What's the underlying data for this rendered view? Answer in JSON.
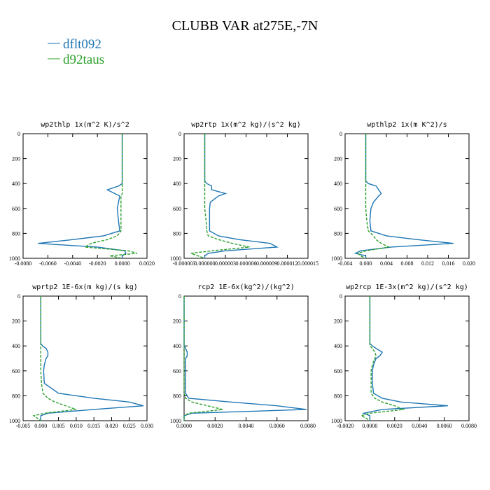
{
  "title": "CLUBB VAR at275E,-7N",
  "chart_data": [
    {
      "type": "line",
      "title": "wp2thlp   1x(m^2 K)/s^2",
      "y_inverted": true,
      "y": [
        0,
        200,
        380,
        400,
        420,
        450,
        480,
        500,
        550,
        600,
        700,
        780,
        820,
        850,
        880,
        910,
        940,
        960,
        980,
        1000
      ],
      "series": [
        {
          "name": "dflt092",
          "color": "#1f77b4",
          "linestyle": "solid",
          "values": [
            0,
            0,
            0,
            0,
            -0.0003,
            -0.0012,
            -0.0006,
            -0.0002,
            -0.0003,
            -0.0004,
            -0.0003,
            -0.0002,
            -0.0015,
            -0.004,
            -0.0068,
            -0.002,
            0.0002,
            0.0003,
            0,
            0
          ]
        },
        {
          "name": "d92taus",
          "color": "#2ca02c",
          "linestyle": "dashed",
          "values": [
            0,
            0,
            0,
            0,
            0,
            0,
            0,
            -0.0001,
            -0.0001,
            -0.0001,
            -0.0001,
            -0.0001,
            -0.0004,
            -0.0012,
            -0.0025,
            -0.003,
            0.0005,
            0.0012,
            -0.001,
            0
          ]
        }
      ],
      "xlim": [
        -0.008,
        0.002
      ],
      "xticks": [
        {
          "value": -0.008,
          "label": "-0.0080"
        },
        {
          "value": -0.006,
          "label": "-0.0060"
        },
        {
          "value": -0.004,
          "label": "-0.0040"
        },
        {
          "value": -0.002,
          "label": "-0.0020"
        },
        {
          "value": 0,
          "label": "0.0000"
        },
        {
          "value": 0.002,
          "label": "0.0020"
        }
      ],
      "ylim": [
        0,
        1000
      ],
      "yticks": [
        0,
        200,
        400,
        600,
        800,
        1000
      ]
    },
    {
      "type": "line",
      "title": "wp2rtp   1x(m^2 kg)/(s^2 kg)",
      "y_inverted": true,
      "y": [
        0,
        200,
        380,
        400,
        420,
        450,
        480,
        500,
        550,
        600,
        700,
        780,
        820,
        850,
        880,
        910,
        940,
        960,
        980,
        1000
      ],
      "series": [
        {
          "name": "dflt092",
          "color": "#1f77b4",
          "linestyle": "solid",
          "values": [
            0,
            0,
            0,
            3e-07,
            1e-06,
            1e-06,
            3e-06,
            2e-06,
            8e-07,
            7e-07,
            7e-07,
            7e-07,
            2e-06,
            5e-06,
            9.5e-06,
            1.05e-05,
            3e-06,
            5e-07,
            0,
            0
          ]
        },
        {
          "name": "d92taus",
          "color": "#2ca02c",
          "linestyle": "dashed",
          "values": [
            0,
            0,
            0,
            0,
            0,
            0,
            0,
            0,
            0,
            0,
            2e-07,
            3e-07,
            5e-07,
            2e-06,
            4e-06,
            6.5e-06,
            1e-06,
            -2e-06,
            -1e-06,
            0
          ]
        }
      ],
      "xlim": [
        -3e-06,
        1.5e-05
      ],
      "xticks": [
        {
          "value": -3e-06,
          "label": "-0.000003"
        },
        {
          "value": 0,
          "label": "0.000000"
        },
        {
          "value": 3e-06,
          "label": "0.000003"
        },
        {
          "value": 6e-06,
          "label": "0.000006"
        },
        {
          "value": 9e-06,
          "label": "0.000009"
        },
        {
          "value": 1.2e-05,
          "label": "0.000012"
        },
        {
          "value": 1.5e-05,
          "label": "0.000015"
        }
      ],
      "ylim": [
        0,
        1000
      ],
      "yticks": [
        0,
        200,
        400,
        600,
        800,
        1000
      ]
    },
    {
      "type": "line",
      "title": "wpthlp2   1x(m K^2)/s",
      "y_inverted": true,
      "y": [
        0,
        200,
        380,
        400,
        420,
        450,
        480,
        500,
        550,
        600,
        700,
        780,
        820,
        850,
        880,
        910,
        940,
        960,
        980,
        1000
      ],
      "series": [
        {
          "name": "dflt092",
          "color": "#1f77b4",
          "linestyle": "solid",
          "values": [
            0,
            0,
            0,
            0.0005,
            0.002,
            0.0025,
            0.003,
            0.0025,
            0.0015,
            0.001,
            0.0008,
            0.001,
            0.004,
            0.01,
            0.017,
            0.005,
            -0.001,
            -0.002,
            0,
            0
          ]
        },
        {
          "name": "d92taus",
          "color": "#2ca02c",
          "linestyle": "dashed",
          "values": [
            0,
            0,
            0,
            0,
            0,
            0,
            0,
            0,
            0,
            0,
            0.0002,
            0.0005,
            0.0015,
            0.002,
            0.003,
            0.0045,
            0,
            -0.0015,
            -0.001,
            0
          ]
        }
      ],
      "xlim": [
        -0.004,
        0.02
      ],
      "xticks": [
        {
          "value": -0.004,
          "label": "-0.004"
        },
        {
          "value": 0,
          "label": "0.000"
        },
        {
          "value": 0.004,
          "label": "0.004"
        },
        {
          "value": 0.008,
          "label": "0.008"
        },
        {
          "value": 0.012,
          "label": "0.012"
        },
        {
          "value": 0.016,
          "label": "0.016"
        },
        {
          "value": 0.02,
          "label": "0.020"
        }
      ],
      "ylim": [
        0,
        1000
      ],
      "yticks": [
        0,
        200,
        400,
        600,
        800,
        1000
      ]
    },
    {
      "type": "line",
      "title": "wprtp2   1E-6x(m kg)/(s kg)",
      "y_inverted": true,
      "y": [
        0,
        200,
        380,
        400,
        420,
        450,
        480,
        500,
        550,
        600,
        700,
        780,
        820,
        850,
        880,
        910,
        940,
        960,
        980,
        1000
      ],
      "series": [
        {
          "name": "dflt092",
          "color": "#1f77b4",
          "linestyle": "solid",
          "values": [
            0,
            0,
            0,
            0.0005,
            0.0015,
            0.002,
            0.002,
            0.0015,
            0.001,
            0.0008,
            0.001,
            0.005,
            0.015,
            0.025,
            0.029,
            0.015,
            0.002,
            0,
            0,
            0
          ]
        },
        {
          "name": "d92taus",
          "color": "#2ca02c",
          "linestyle": "dashed",
          "values": [
            0,
            0,
            0,
            0,
            0,
            0,
            0,
            0,
            0,
            0,
            0.0002,
            0.0006,
            0.002,
            0.004,
            0.007,
            0.01,
            0.001,
            -0.002,
            -0.001,
            0
          ]
        }
      ],
      "xlim": [
        -0.005,
        0.03
      ],
      "xticks": [
        {
          "value": -0.005,
          "label": "-0.005"
        },
        {
          "value": 0,
          "label": "0.000"
        },
        {
          "value": 0.005,
          "label": "0.005"
        },
        {
          "value": 0.01,
          "label": "0.010"
        },
        {
          "value": 0.015,
          "label": "0.015"
        },
        {
          "value": 0.02,
          "label": "0.020"
        },
        {
          "value": 0.025,
          "label": "0.025"
        },
        {
          "value": 0.03,
          "label": "0.030"
        }
      ],
      "ylim": [
        0,
        1000
      ],
      "yticks": [
        0,
        200,
        400,
        600,
        800,
        1000
      ]
    },
    {
      "type": "line",
      "title": "rcp2   1E-6x(kg^2)/(kg^2)",
      "y_inverted": true,
      "y": [
        0,
        200,
        380,
        400,
        420,
        450,
        480,
        500,
        550,
        600,
        700,
        780,
        820,
        850,
        880,
        910,
        940,
        960,
        980,
        1000
      ],
      "series": [
        {
          "name": "dflt092",
          "color": "#1f77b4",
          "linestyle": "solid",
          "values": [
            0,
            0,
            0,
            0,
            0.0001,
            0.0002,
            0.0002,
            0.0001,
            0.0001,
            0.0001,
            0.0001,
            0.0001,
            0.0003,
            0.003,
            0.006,
            0.0079,
            0.0005,
            0,
            0,
            0
          ]
        },
        {
          "name": "d92taus",
          "color": "#2ca02c",
          "linestyle": "dashed",
          "values": [
            0,
            0,
            0,
            0,
            0,
            0,
            0,
            0,
            0,
            0,
            0,
            0,
            0.0001,
            0.0005,
            0.0015,
            0.0025,
            0.0003,
            0,
            0,
            0
          ]
        }
      ],
      "xlim": [
        0,
        0.008
      ],
      "xticks": [
        {
          "value": 0,
          "label": "0.0000"
        },
        {
          "value": 0.002,
          "label": "0.0020"
        },
        {
          "value": 0.004,
          "label": "0.0040"
        },
        {
          "value": 0.006,
          "label": "0.0060"
        },
        {
          "value": 0.008,
          "label": "0.0080"
        }
      ],
      "ylim": [
        0,
        1000
      ],
      "yticks": [
        0,
        200,
        400,
        600,
        800,
        1000
      ]
    },
    {
      "type": "line",
      "title": "wp2rcp   1E-3x(m^2 kg)/(s^2 kg)",
      "y_inverted": true,
      "y": [
        0,
        200,
        380,
        400,
        420,
        450,
        480,
        500,
        550,
        600,
        700,
        780,
        820,
        850,
        880,
        910,
        940,
        960,
        980,
        1000
      ],
      "series": [
        {
          "name": "dflt092",
          "color": "#1f77b4",
          "linestyle": "solid",
          "values": [
            0,
            0,
            0,
            0.0002,
            0.0005,
            0.001,
            0.0008,
            0.0005,
            0.0003,
            0.0002,
            0.0002,
            0.0003,
            0.001,
            0.0025,
            0.0063,
            0.001,
            -0.0005,
            0,
            0,
            0
          ]
        },
        {
          "name": "d92taus",
          "color": "#2ca02c",
          "linestyle": "dashed",
          "values": [
            0,
            0,
            0,
            0,
            0.0002,
            0.0004,
            0.0005,
            0.0004,
            0.0002,
            0.0001,
            0.0001,
            0.0001,
            0.0004,
            0.001,
            0.002,
            0.0027,
            0,
            -0.0007,
            -0.0003,
            0
          ]
        }
      ],
      "xlim": [
        -0.002,
        0.008
      ],
      "xticks": [
        {
          "value": -0.002,
          "label": "-0.0020"
        },
        {
          "value": 0,
          "label": "0.0000"
        },
        {
          "value": 0.002,
          "label": "0.0020"
        },
        {
          "value": 0.004,
          "label": "0.0040"
        },
        {
          "value": 0.006,
          "label": "0.0060"
        },
        {
          "value": 0.008,
          "label": "0.0080"
        }
      ],
      "ylim": [
        0,
        1000
      ],
      "yticks": [
        0,
        200,
        400,
        600,
        800,
        1000
      ]
    }
  ]
}
